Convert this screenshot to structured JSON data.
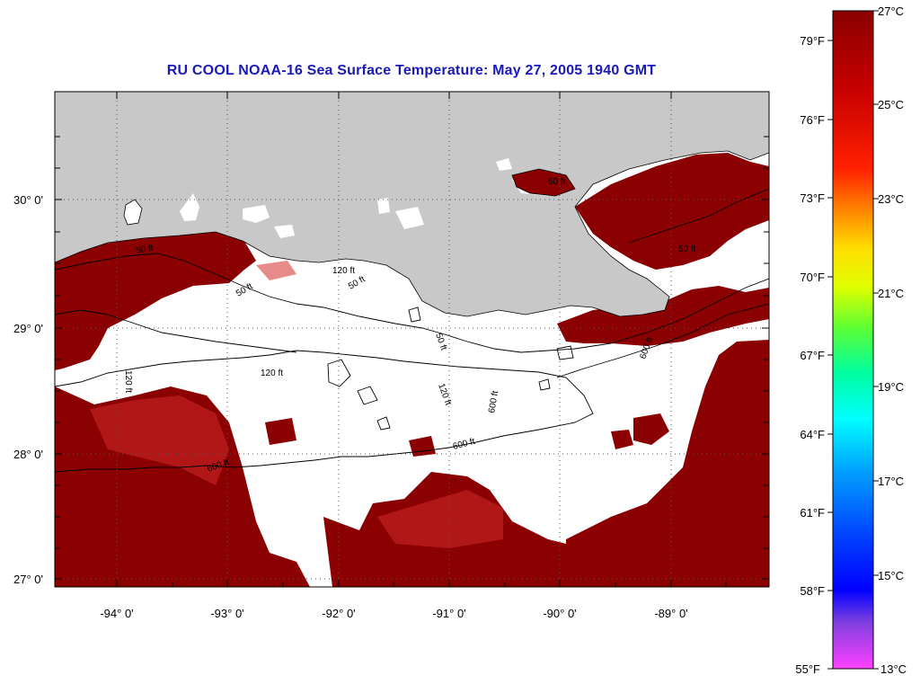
{
  "title": "RU COOL  NOAA-16  Sea Surface Temperature:  May 27, 2005 1940 GMT",
  "map": {
    "lat_labels": [
      "30° 0'",
      "29° 0'",
      "28° 0'",
      "27° 0'"
    ],
    "lon_labels": [
      "-94° 0'",
      "-93° 0'",
      "-92° 0'",
      "-91° 0'",
      "-90° 0'",
      "-89° 0'"
    ],
    "contour_labels": [
      "50 ft",
      "50 ft",
      "120 ft",
      "50 ft",
      "120 ft",
      "50 ft",
      "120 ft",
      "120 ft",
      "600 ft",
      "600 ft",
      "600 ft",
      "600 ft",
      "50 ft",
      "50 ft"
    ],
    "colors": {
      "land": "#c8c8c8",
      "cloud": "#ffffff",
      "warm_sst": "#8b0000",
      "sst_mid": "#d42020",
      "contour": "#000000",
      "grid": "#555555"
    }
  },
  "colorbar": {
    "fahrenheit_labels": [
      "79°F",
      "76°F",
      "73°F",
      "70°F",
      "67°F",
      "64°F",
      "61°F",
      "58°F",
      "55°F"
    ],
    "celsius_labels": [
      "27°C",
      "25°C",
      "23°C",
      "21°C",
      "19°C",
      "17°C",
      "15°C",
      "13°C"
    ],
    "gradient_colors": [
      "#8b0000",
      "#c00000",
      "#ff2000",
      "#ff7000",
      "#ffd000",
      "#ffff00",
      "#90ff00",
      "#00ff80",
      "#00ffff",
      "#00b0ff",
      "#0050ff",
      "#0000ff",
      "#6040d0",
      "#ff40ff"
    ]
  }
}
